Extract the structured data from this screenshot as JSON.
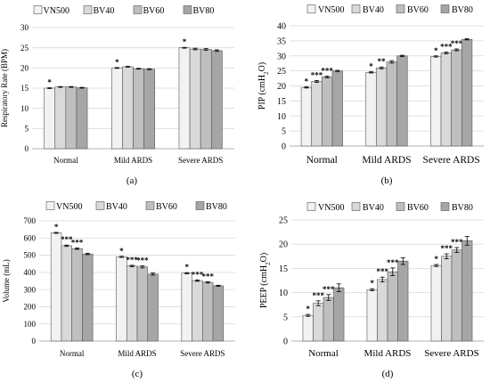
{
  "figure": {
    "series_names": [
      "VN500",
      "BV40",
      "BV60",
      "BV80"
    ],
    "series_colors": [
      "#f2f2f2",
      "#d9d9d9",
      "#bfbfbf",
      "#a6a6a6"
    ]
  },
  "chart_data": [
    {
      "panel": "(a)",
      "type": "bar",
      "categories": [
        "Normal",
        "Mild ARDS",
        "Severe ARDS"
      ],
      "ylabel": "Respiratory Rate (BPM)",
      "ylim": [
        0,
        30
      ],
      "yticks": [
        0,
        5,
        10,
        15,
        20,
        25,
        30
      ],
      "grid": true,
      "legend": "top",
      "series": [
        {
          "name": "VN500",
          "values": [
            15.0,
            20.0,
            25.0
          ],
          "errors": [
            0.1,
            0.1,
            0.1
          ]
        },
        {
          "name": "BV40",
          "values": [
            15.3,
            20.3,
            24.7
          ],
          "errors": [
            0.1,
            0.1,
            0.2
          ]
        },
        {
          "name": "BV60",
          "values": [
            15.3,
            19.8,
            24.6
          ],
          "errors": [
            0.1,
            0.1,
            0.2
          ]
        },
        {
          "name": "BV80",
          "values": [
            15.1,
            19.7,
            24.3
          ],
          "errors": [
            0.1,
            0.1,
            0.2
          ]
        }
      ],
      "annotations": [
        [
          "*",
          "",
          "",
          ""
        ],
        [
          "*",
          "",
          "",
          ""
        ],
        [
          "*",
          "",
          "",
          ""
        ]
      ]
    },
    {
      "panel": "(b)",
      "type": "bar",
      "categories": [
        "Normal",
        "Mild ARDS",
        "Severe ARDS"
      ],
      "ylabel": "PIP (cmH₂O)",
      "ylim": [
        0,
        40
      ],
      "yticks": [
        0,
        5,
        10,
        15,
        20,
        25,
        30,
        35,
        40
      ],
      "grid": true,
      "legend": "top",
      "series": [
        {
          "name": "VN500",
          "values": [
            19.5,
            24.5,
            29.8
          ],
          "errors": [
            0.2,
            0.2,
            0.2
          ]
        },
        {
          "name": "BV40",
          "values": [
            21.5,
            26.0,
            31.0
          ],
          "errors": [
            0.3,
            0.3,
            0.3
          ]
        },
        {
          "name": "BV60",
          "values": [
            23.0,
            28.0,
            32.0
          ],
          "errors": [
            0.3,
            0.4,
            0.3
          ]
        },
        {
          "name": "BV80",
          "values": [
            25.0,
            30.0,
            35.5
          ],
          "errors": [
            0.2,
            0.2,
            0.2
          ]
        }
      ],
      "annotations": [
        [
          "*",
          "***",
          "***",
          ""
        ],
        [
          "*",
          "**",
          "",
          ""
        ],
        [
          "*",
          "***",
          "***",
          ""
        ]
      ]
    },
    {
      "panel": "(c)",
      "type": "bar",
      "categories": [
        "Normal",
        "Mild ARDS",
        "Severe ARDS"
      ],
      "ylabel": "Volume (mL)",
      "ylim": [
        0,
        700
      ],
      "yticks": [
        0,
        100,
        200,
        300,
        400,
        500,
        600,
        700
      ],
      "grid": true,
      "legend": "top",
      "series": [
        {
          "name": "VN500",
          "values": [
            630,
            490,
            395
          ],
          "errors": [
            3,
            3,
            3
          ]
        },
        {
          "name": "BV40",
          "values": [
            555,
            437,
            352
          ],
          "errors": [
            4,
            4,
            4
          ]
        },
        {
          "name": "BV60",
          "values": [
            538,
            432,
            342
          ],
          "errors": [
            4,
            6,
            4
          ]
        },
        {
          "name": "BV80",
          "values": [
            507,
            390,
            322
          ],
          "errors": [
            4,
            6,
            3
          ]
        }
      ],
      "annotations": [
        [
          "*",
          "***",
          "***",
          ""
        ],
        [
          "*",
          "***",
          "***",
          ""
        ],
        [
          "*",
          "***",
          "***",
          ""
        ]
      ]
    },
    {
      "panel": "(d)",
      "type": "bar",
      "categories": [
        "Normal",
        "Mild ARDS",
        "Severe ARDS"
      ],
      "ylabel": "PEEP (cmH₂O)",
      "ylim": [
        0,
        25
      ],
      "yticks": [
        0,
        5,
        10,
        15,
        20,
        25
      ],
      "grid": true,
      "legend": "top",
      "series": [
        {
          "name": "VN500",
          "values": [
            5.3,
            10.6,
            15.6
          ],
          "errors": [
            0.2,
            0.2,
            0.2
          ]
        },
        {
          "name": "BV40",
          "values": [
            7.8,
            12.7,
            17.5
          ],
          "errors": [
            0.5,
            0.5,
            0.5
          ]
        },
        {
          "name": "BV60",
          "values": [
            9.0,
            14.3,
            18.8
          ],
          "errors": [
            0.6,
            0.8,
            0.5
          ]
        },
        {
          "name": "BV80",
          "values": [
            11.0,
            16.5,
            20.7
          ],
          "errors": [
            0.8,
            0.7,
            0.9
          ]
        }
      ],
      "annotations": [
        [
          "*",
          "***",
          "***",
          ""
        ],
        [
          "*",
          "***",
          "***",
          ""
        ],
        [
          "*",
          "***",
          "***",
          ""
        ]
      ]
    }
  ]
}
